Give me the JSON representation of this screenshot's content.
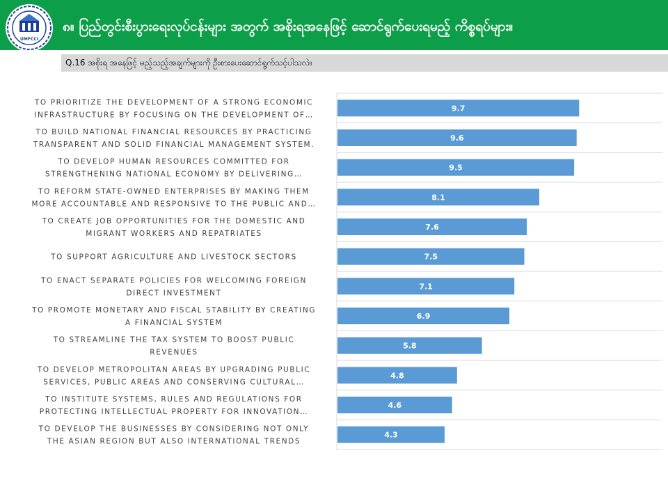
{
  "header": {
    "title": "၈။ ပြည်တွင်းစီးပွားရေးလုပ်ငန်းများ အတွက် အစိုးရအနေဖြင့် ဆောင်ရွက်ပေးရမည့် ကိစ္စရပ်များ။",
    "logo_text": "UMFCCI"
  },
  "subheader": {
    "question": "Q.16 အစိုးရ အနေဖြင့် မည့်သည့်အချက်များကို ဦးစားပေးဆောင်ရွက်သင့်ပါသလဲ။"
  },
  "colors": {
    "header_green": "#0d9e49",
    "bar_blue": "#5b9bd5",
    "subbar_grey": "#d8d8d8"
  },
  "chart_data": {
    "type": "bar",
    "orientation": "horizontal",
    "xlim": [
      0,
      10
    ],
    "grid": true,
    "categories": [
      [
        "TO PRIORITIZE THE DEVELOPMENT OF A STRONG ECONOMIC",
        "INFRASTRUCTURE BY FOCUSING ON THE DEVELOPMENT OF…"
      ],
      [
        "TO BUILD NATIONAL FINANCIAL RESOURCES BY PRACTICING",
        "TRANSPARENT AND SOLID FINANCIAL MANAGEMENT SYSTEM."
      ],
      [
        "TO DEVELOP HUMAN RESOURCES COMMITTED FOR",
        "STRENGTHENING NATIONAL ECONOMY BY DELIVERING…"
      ],
      [
        "TO REFORM STATE-OWNED ENTERPRISES BY MAKING THEM",
        "MORE ACCOUNTABLE AND RESPONSIVE TO THE PUBLIC AND…"
      ],
      [
        "TO CREATE JOB OPPORTUNITIES FOR THE DOMESTIC AND",
        "MIGRANT WORKERS AND REPATRIATES"
      ],
      [
        "TO SUPPORT AGRICULTURE AND LIVESTOCK SECTORS"
      ],
      [
        "TO ENACT SEPARATE POLICIES FOR WELCOMING FOREIGN",
        "DIRECT INVESTMENT"
      ],
      [
        "TO PROMOTE MONETARY AND FISCAL STABILITY BY CREATING",
        "A FINANCIAL SYSTEM"
      ],
      [
        "TO STREAMLINE THE TAX SYSTEM TO BOOST PUBLIC",
        "REVENUES"
      ],
      [
        "TO DEVELOP METROPOLITAN AREAS BY UPGRADING PUBLIC",
        "SERVICES, PUBLIC AREAS AND CONSERVING CULTURAL…"
      ],
      [
        "TO INSTITUTE SYSTEMS, RULES AND REGULATIONS FOR",
        "PROTECTING INTELLECTUAL PROPERTY FOR INNOVATION…"
      ],
      [
        "TO DEVELOP THE BUSINESSES BY CONSIDERING NOT ONLY",
        "THE ASIAN REGION BUT ALSO INTERNATIONAL TRENDS"
      ]
    ],
    "values": [
      9.7,
      9.6,
      9.5,
      8.1,
      7.6,
      7.5,
      7.1,
      6.9,
      5.8,
      4.8,
      4.6,
      4.3
    ],
    "value_labels": [
      "9.7",
      "9.6",
      "9.5",
      "8.1",
      "7.6",
      "7.5",
      "7.1",
      "6.9",
      "5.8",
      "4.8",
      "4.6",
      "4.3"
    ]
  }
}
